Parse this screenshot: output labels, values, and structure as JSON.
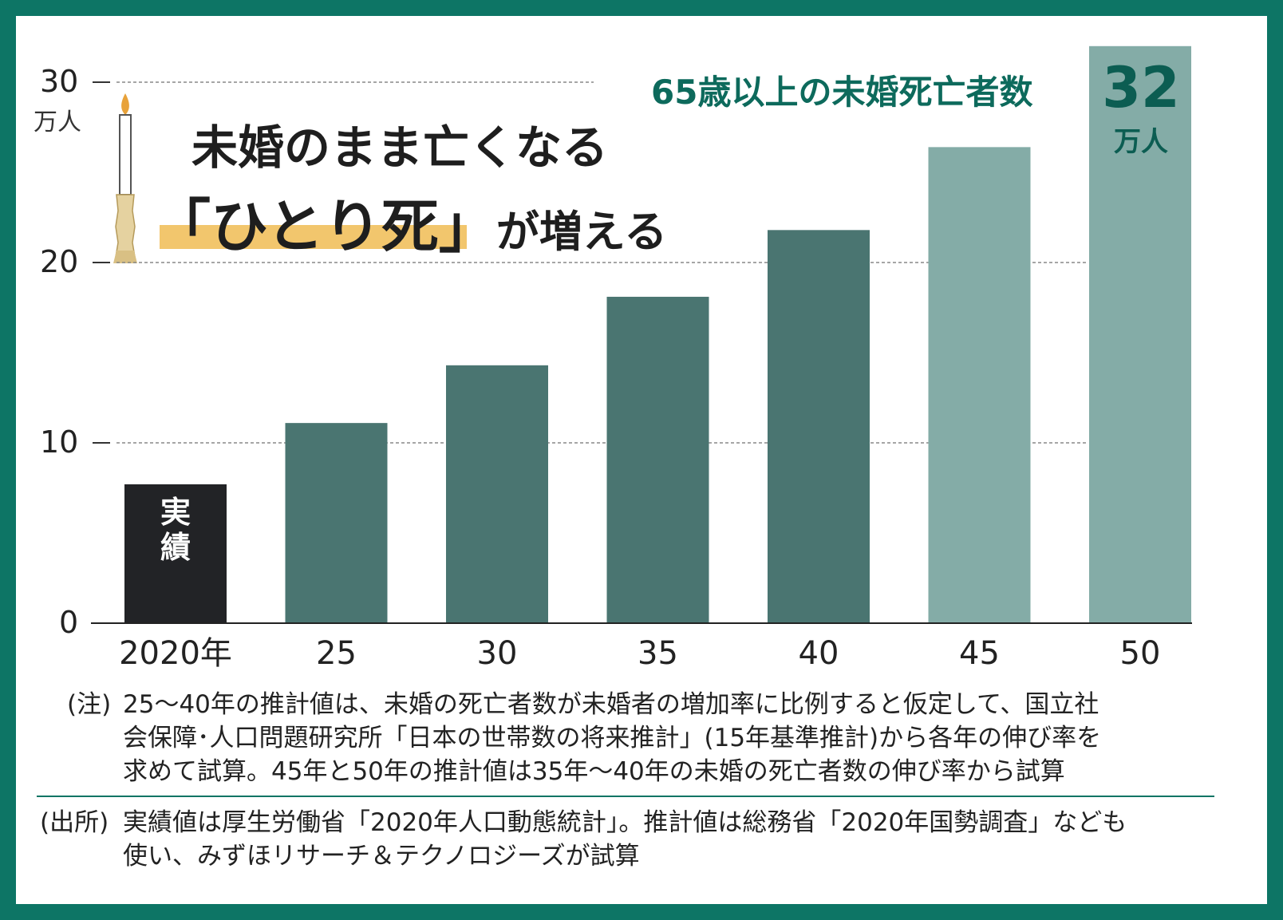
{
  "chart_data": {
    "type": "bar",
    "title": "未婚のまま亡くなる「ひとり死」が増える",
    "title_line1": "未婚のまま亡くなる",
    "title_line2_bracketed": "「ひとり死」",
    "title_line2_rest": "が増える",
    "subtitle": "65歳以上の未婚死亡者数",
    "ylabel_unit": "万人",
    "categories": [
      "2020年",
      "25",
      "30",
      "35",
      "40",
      "45",
      "50"
    ],
    "values": [
      7.7,
      11.1,
      14.3,
      18.1,
      21.8,
      26.4,
      32
    ],
    "bar_kind": [
      "actual",
      "estimate",
      "estimate",
      "estimate",
      "estimate",
      "estimate_extrapolated",
      "estimate_extrapolated"
    ],
    "bar_colors": {
      "actual": "#222326",
      "estimate": "#4a7571",
      "estimate_extrapolated": "#84aca7"
    },
    "actual_label": "実績",
    "ylim": [
      0,
      32
    ],
    "yticks": [
      "0",
      "10",
      "20",
      "30"
    ],
    "grid": "dashed horizontal at 10, 20, 30",
    "last_value_label": {
      "value": "32",
      "unit": "万人"
    }
  },
  "notes": {
    "note_label": "(注)",
    "note_lines": [
      "25～40年の推計値は、未婚の死亡者数が未婚者の増加率に比例すると仮定して、国立社",
      "会保障･人口問題研究所「日本の世帯数の将来推計」(15年基準推計)から各年の伸び率を",
      "求めて試算。45年と50年の推計値は35年～40年の未婚の死亡者数の伸び率から試算"
    ],
    "source_label": "(出所)",
    "source_lines": [
      "実績値は厚生労働省「2020年人口動態統計」。推計値は総務省「2020年国勢調査」なども",
      "使い、みずほリサーチ＆テクノロジーズが試算"
    ]
  },
  "colors": {
    "frame": "#0d7565",
    "accent_text": "#0d6a5c",
    "highlight": "#f2c66d"
  }
}
